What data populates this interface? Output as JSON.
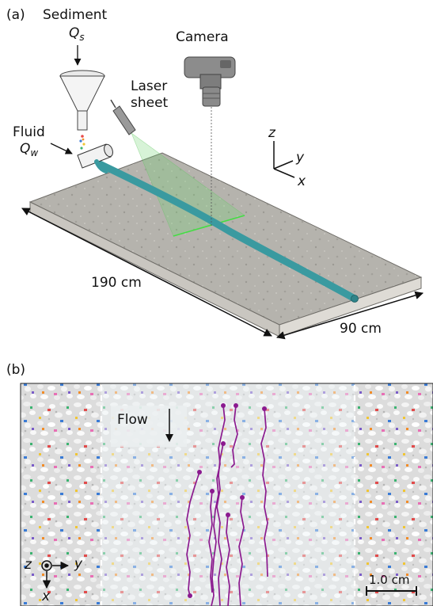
{
  "panel_a": {
    "label": "(a)",
    "sediment": {
      "title": "Sediment",
      "symbol": "Q",
      "subscript": "s"
    },
    "fluid": {
      "title": "Fluid",
      "symbol": "Q",
      "subscript": "w"
    },
    "laser": {
      "line1": "Laser",
      "line2": "sheet"
    },
    "camera": "Camera",
    "axes": {
      "z": "z",
      "y": "y",
      "x": "x"
    },
    "length_label": "190 cm",
    "width_label": "90 cm"
  },
  "panel_b": {
    "label": "(b)",
    "flow_label": "Flow",
    "axes": {
      "z": "z",
      "y": "y",
      "x": "x"
    },
    "scale_label": "1.0 cm",
    "trajectory_color": "#8b1a8f"
  },
  "colors": {
    "channel": "#3a9aa0",
    "laser_sheet": "#5fd05f",
    "table_top": "#b3b1ab",
    "table_side": "#d6d3cd"
  }
}
